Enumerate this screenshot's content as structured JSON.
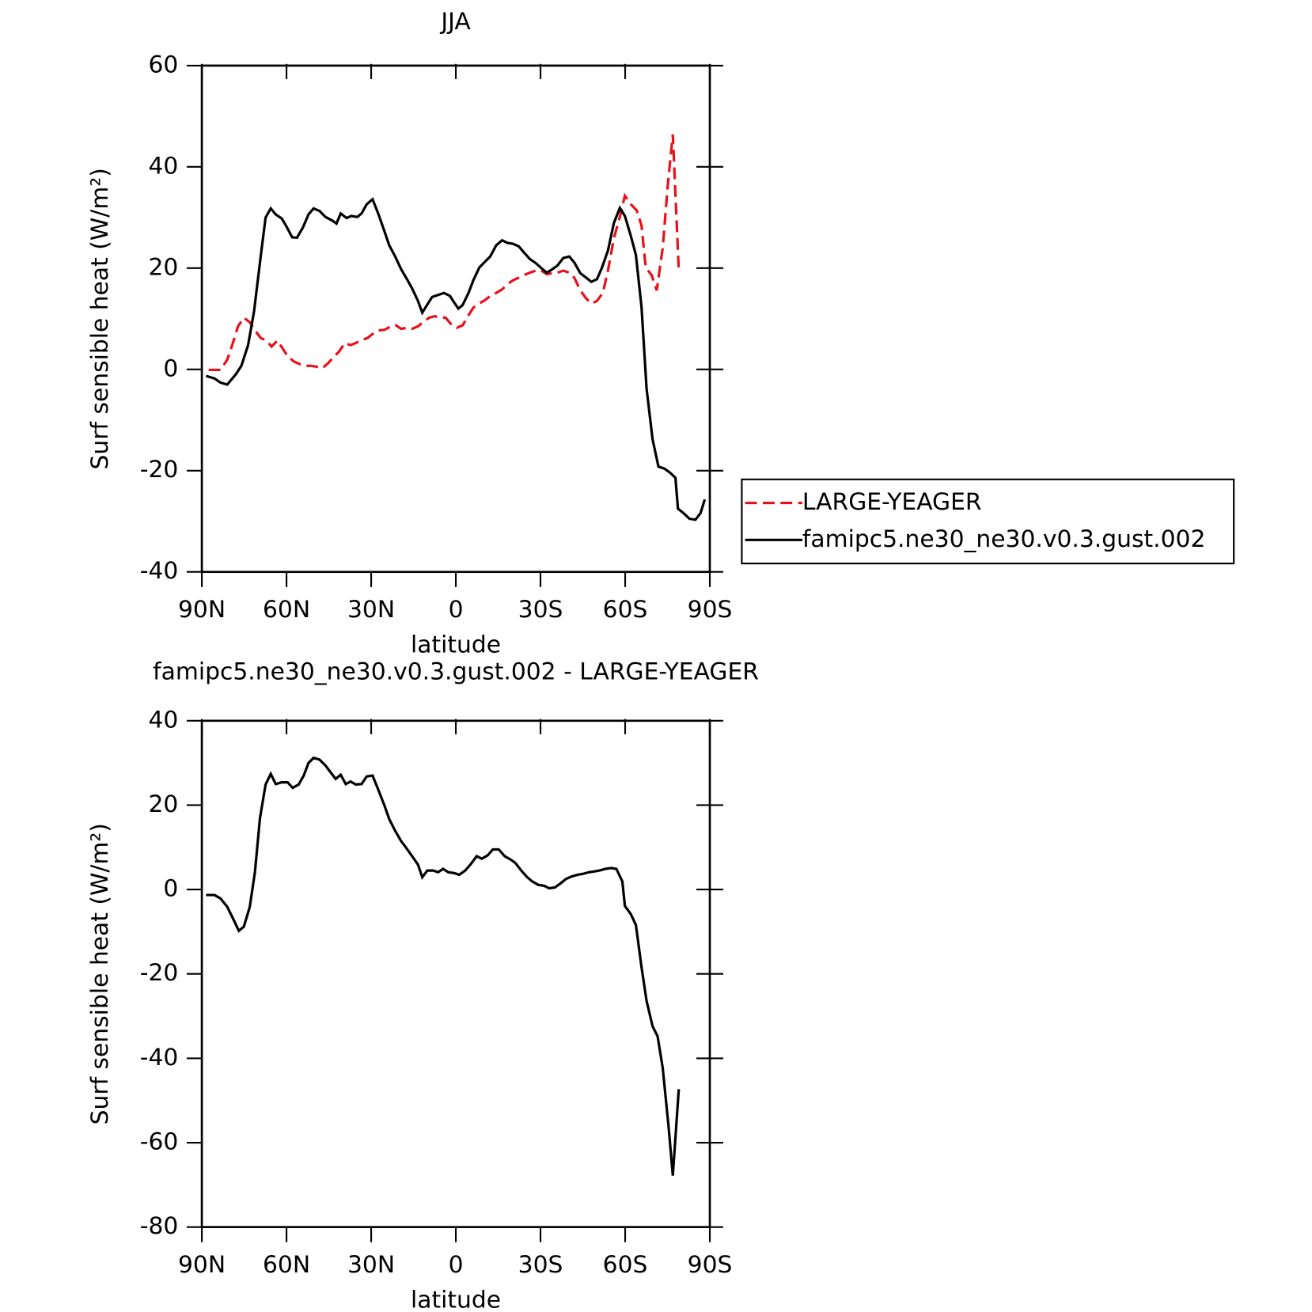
{
  "chart_data": [
    {
      "type": "line",
      "title": "JJA",
      "xlabel": "latitude",
      "ylabel": "Surf sensible heat (W/m²)",
      "xlim": [
        90,
        -90
      ],
      "xticks": [
        {
          "value": 90,
          "label": "90N"
        },
        {
          "value": 60,
          "label": "60N"
        },
        {
          "value": 30,
          "label": "30N"
        },
        0,
        {
          "value": -30,
          "label": "30S"
        },
        {
          "value": -60,
          "label": "60S"
        },
        {
          "value": -90,
          "label": "90S"
        }
      ],
      "ylim": [
        -40,
        60
      ],
      "yticks": [
        -40,
        -20,
        0,
        20,
        40,
        60
      ],
      "legend": "right",
      "series": [
        {
          "name": "LARGE-YEAGER",
          "color": "#e8101a",
          "linestyle": "dashed",
          "x": [
            87.6,
            83.4,
            81,
            79,
            77.2,
            75.1,
            73,
            71.2,
            69.1,
            67.1,
            65.3,
            63.2,
            61.1,
            59.3,
            57.2,
            55.1,
            53.3,
            51.3,
            49.2,
            47.4,
            45.3,
            43.2,
            41.4,
            39.3,
            37.3,
            35.5,
            33.4,
            31.3,
            29.5,
            27.4,
            25.3,
            23.6,
            21.5,
            19.4,
            17.6,
            15.5,
            13.4,
            11.6,
            9.5,
            7.5,
            5.7,
            3.6,
            1.5,
            -0.3,
            -2.4,
            -4.5,
            -6.2,
            -8.3,
            -10.4,
            -12.2,
            -14.3,
            -16.4,
            -18.2,
            -20.3,
            -22.3,
            -24.1,
            -26.2,
            -28.3,
            -30.1,
            -32.2,
            -34.3,
            -36,
            -38.1,
            -40.2,
            -42,
            -44.1,
            -46.2,
            -48,
            -50,
            -52.1,
            -53.9,
            -56,
            -58.1,
            -59.9,
            -62,
            -64.1,
            -65.8,
            -67.3,
            -69.4,
            -71.2,
            -73.3,
            -75.1,
            -76.9,
            -79
          ],
          "values": [
            -0.1,
            -0.1,
            1.9,
            5.2,
            8.5,
            10.2,
            9.3,
            7.7,
            6.2,
            5.7,
            4.5,
            5.7,
            3.9,
            2.4,
            1.5,
            1,
            0.7,
            0.7,
            0.5,
            0.2,
            1.2,
            2.5,
            3.5,
            5.2,
            4.8,
            5.2,
            5.8,
            6.2,
            7,
            7.7,
            7.8,
            8.3,
            8.8,
            8,
            8.2,
            8,
            8.5,
            9.3,
            10.2,
            10.5,
            10.3,
            10.2,
            8.8,
            8.2,
            8.7,
            10.7,
            12.2,
            13,
            13.7,
            14.5,
            15.1,
            15.8,
            16.8,
            17.6,
            18.1,
            18.6,
            19.1,
            19.5,
            19.6,
            18.8,
            19,
            19.1,
            19.5,
            19.1,
            18.1,
            15.6,
            14,
            13,
            13.5,
            15.1,
            19.5,
            25.9,
            30.1,
            34.3,
            32.6,
            31.4,
            28.4,
            20.1,
            18.6,
            15.6,
            24,
            36.4,
            46.4,
            19.5
          ]
        },
        {
          "name": "famipc5.ne30_ne30.v0.3.gust.002",
          "color": "#000000",
          "linestyle": "solid",
          "x": [
            88.5,
            85.5,
            83.4,
            81,
            78,
            76,
            73.6,
            71.5,
            69,
            67.4,
            65.6,
            63.8,
            61.7,
            60.2,
            58,
            56.3,
            54.2,
            52.2,
            50.4,
            48.3,
            46.2,
            43.8,
            42.3,
            40.8,
            38.7,
            37,
            34.9,
            33.4,
            31.6,
            29.5,
            27.4,
            25.3,
            23.6,
            21.5,
            19.4,
            17.3,
            15.5,
            13.4,
            11.9,
            10.1,
            8.4,
            6.3,
            4.2,
            2.1,
            0.6,
            -0.9,
            -2.4,
            -4.5,
            -6.2,
            -8.3,
            -10.4,
            -12.2,
            -14.3,
            -16.4,
            -18.2,
            -20.3,
            -22.3,
            -24.1,
            -26.2,
            -28.3,
            -30.1,
            -32.2,
            -33.7,
            -36,
            -38.1,
            -40.2,
            -42,
            -44.1,
            -46.2,
            -48,
            -50,
            -51.8,
            -53.9,
            -56,
            -58.1,
            -59.9,
            -62,
            -63.8,
            -65.8,
            -67.6,
            -69.7,
            -71.8,
            -73.9,
            -75.9,
            -77.8,
            -78.7,
            -80.7,
            -82.8,
            -84.9,
            -86.7,
            -88.2
          ],
          "values": [
            -1.3,
            -1.8,
            -2.6,
            -3,
            -1,
            0.7,
            4.8,
            11.5,
            23,
            30,
            31.8,
            30.6,
            29.8,
            28.4,
            26.1,
            26,
            28,
            30.6,
            31.8,
            31.3,
            30.1,
            29.4,
            28.8,
            30.8,
            29.9,
            30.3,
            30.1,
            30.8,
            32.6,
            33.6,
            30.6,
            27.3,
            24.5,
            22.3,
            19.8,
            17.8,
            16,
            13.5,
            11.2,
            12.8,
            14.3,
            14.7,
            15.1,
            14.5,
            13.2,
            12,
            12.7,
            15.1,
            17.6,
            20.1,
            21.3,
            22.3,
            24.5,
            25.5,
            25,
            24.8,
            24.3,
            23.1,
            21.8,
            21,
            20.1,
            19.1,
            19.6,
            20.5,
            22,
            22.3,
            21.1,
            19,
            18.1,
            17.3,
            17.8,
            20.1,
            23.5,
            28.9,
            31.9,
            30.3,
            26.4,
            22.6,
            12.3,
            -3.8,
            -13.8,
            -19.2,
            -19.6,
            -20.4,
            -21.4,
            -27.5,
            -28.4,
            -29.5,
            -29.7,
            -28.4,
            -25.7
          ]
        }
      ]
    },
    {
      "type": "line",
      "title": "famipc5.ne30_ne30.v0.3.gust.002 - LARGE-YEAGER",
      "xlabel": "latitude",
      "ylabel": "Surf sensible heat (W/m²)",
      "xlim": [
        90,
        -90
      ],
      "xticks": [
        {
          "value": 90,
          "label": "90N"
        },
        {
          "value": 60,
          "label": "60N"
        },
        {
          "value": 30,
          "label": "30N"
        },
        0,
        {
          "value": -30,
          "label": "30S"
        },
        {
          "value": -60,
          "label": "60S"
        },
        {
          "value": -90,
          "label": "90S"
        }
      ],
      "ylim": [
        -80,
        40
      ],
      "yticks": [
        -80,
        -60,
        -40,
        -20,
        0,
        20,
        40
      ],
      "series": [
        {
          "color": "#000000",
          "linestyle": "solid",
          "x": [
            88.5,
            85.5,
            83.4,
            81,
            79,
            76.9,
            75.1,
            73,
            71.2,
            69.4,
            67.4,
            65.6,
            63.8,
            61.7,
            59.6,
            57.8,
            55.7,
            53.9,
            52.2,
            50.4,
            48.3,
            46.2,
            44.4,
            42.6,
            40.8,
            39,
            37.3,
            35.5,
            33.4,
            31.6,
            29.5,
            27.4,
            25.3,
            23.6,
            21.5,
            19.4,
            17.6,
            15.5,
            13.4,
            11.9,
            10.1,
            8,
            6.3,
            4.5,
            2.7,
            0.6,
            -1.2,
            -3.3,
            -5.4,
            -7.4,
            -9.2,
            -11.3,
            -13.1,
            -15.2,
            -17.3,
            -19.4,
            -21.1,
            -23.2,
            -25.3,
            -27.1,
            -29.2,
            -31.3,
            -33.1,
            -35.1,
            -37.2,
            -39,
            -41.1,
            -43.2,
            -45,
            -47.1,
            -49.2,
            -50.9,
            -53,
            -55.1,
            -56.9,
            -59,
            -59.9,
            -62,
            -63.8,
            -65.8,
            -67.6,
            -69.7,
            -71.5,
            -73.3,
            -75.4,
            -76.9,
            -79
          ],
          "values": [
            -1.3,
            -1.3,
            -2.1,
            -4.1,
            -6.8,
            -9.8,
            -8.8,
            -4.1,
            4.1,
            16.9,
            24.9,
            27.4,
            25,
            25.4,
            25.4,
            24.1,
            24.9,
            27,
            30,
            31.2,
            30.8,
            29.4,
            27.8,
            26.2,
            27.2,
            25,
            25.6,
            24.9,
            25,
            26.8,
            27,
            23.5,
            19.9,
            16.7,
            13.9,
            11.5,
            9.9,
            7.9,
            5.9,
            2.9,
            4.5,
            4.5,
            4.1,
            4.9,
            4.1,
            3.9,
            3.5,
            4.5,
            6.1,
            7.9,
            7.3,
            8.1,
            9.5,
            9.5,
            7.9,
            7.1,
            6.3,
            4.5,
            2.9,
            1.9,
            1.1,
            0.9,
            0.3,
            0.5,
            1.5,
            2.5,
            3.1,
            3.5,
            3.7,
            4.1,
            4.3,
            4.5,
            4.9,
            5.1,
            4.9,
            1.9,
            -3.9,
            -5.8,
            -8.4,
            -18.4,
            -26.4,
            -32.4,
            -34.8,
            -42.3,
            -56.3,
            -67.8,
            -47.3
          ]
        }
      ]
    }
  ]
}
